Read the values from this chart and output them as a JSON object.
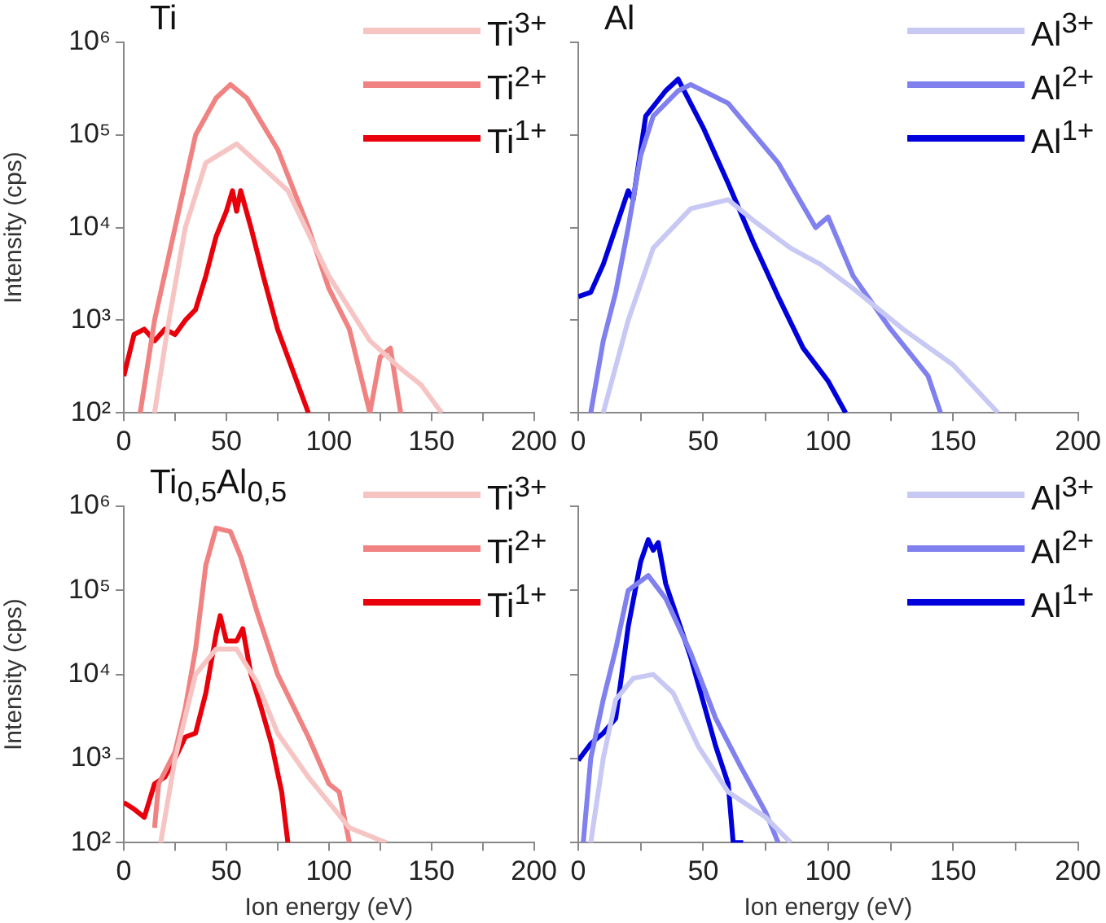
{
  "chart_data": [
    {
      "type": "line",
      "title": "Ti",
      "ylabel": "Intensity (cps)",
      "xlim": [
        0,
        200
      ],
      "xticks": [
        0,
        {
          "value": 25,
          "label": null
        },
        50,
        {
          "value": 75,
          "label": null
        },
        100,
        {
          "value": 125,
          "label": null
        },
        150,
        {
          "value": 175,
          "label": null
        },
        200
      ],
      "ylim": [
        100,
        1000000
      ],
      "yticks": [
        {
          "value": 100,
          "label": "10²"
        },
        {
          "value": 1000,
          "label": "10³"
        },
        {
          "value": 10000,
          "label": "10⁴"
        },
        {
          "value": 100000,
          "label": "10⁵"
        },
        {
          "value": 1000000,
          "label": "10⁶"
        }
      ],
      "log": "y",
      "grid": false,
      "legend": "top right",
      "series": [
        {
          "name": "Ti$^{3+}$",
          "color": "#f7c4c4",
          "x": [
            15,
            22,
            30,
            40,
            55,
            70,
            80,
            100,
            120,
            135,
            145,
            155
          ],
          "values": [
            100,
            1000,
            10000,
            50000,
            80000,
            40000,
            25000,
            3000,
            600,
            300,
            200,
            100
          ]
        },
        {
          "name": "Ti$^{2+}$",
          "color": "#f08282",
          "x": [
            8,
            15,
            25,
            35,
            45,
            52,
            60,
            75,
            90,
            100,
            110,
            120,
            125,
            130,
            135
          ],
          "values": [
            100,
            1000,
            10000,
            100000,
            250000,
            350000,
            250000,
            70000,
            10000,
            2200,
            800,
            100,
            400,
            500,
            100
          ]
        },
        {
          "name": "Ti$^{1+}$",
          "color": "#e8000b",
          "x": [
            0,
            5,
            10,
            15,
            20,
            25,
            30,
            35,
            40,
            45,
            50,
            53,
            55,
            57,
            62,
            68,
            75,
            80,
            85,
            90
          ],
          "values": [
            250,
            700,
            800,
            600,
            800,
            700,
            1000,
            1300,
            3000,
            8000,
            15000,
            25000,
            15000,
            25000,
            10000,
            3000,
            800,
            400,
            200,
            100
          ]
        }
      ]
    },
    {
      "type": "line",
      "title": "Al",
      "xlim": [
        0,
        200
      ],
      "xticks": [
        0,
        {
          "value": 25,
          "label": null
        },
        50,
        {
          "value": 75,
          "label": null
        },
        100,
        {
          "value": 125,
          "label": null
        },
        150,
        {
          "value": 175,
          "label": null
        },
        200
      ],
      "ylim": [
        100,
        1000000
      ],
      "yticks": [
        {
          "value": 100,
          "label": null
        },
        {
          "value": 1000,
          "label": null
        },
        {
          "value": 10000,
          "label": null
        },
        {
          "value": 100000,
          "label": null
        },
        {
          "value": 1000000,
          "label": null
        }
      ],
      "log": "y",
      "grid": false,
      "legend": "top right",
      "tick_labels": "x",
      "series": [
        {
          "name": "Al$^{3+}$",
          "color": "#c8c8f4",
          "x": [
            10,
            20,
            30,
            45,
            60,
            70,
            85,
            97,
            110,
            130,
            150,
            168
          ],
          "values": [
            100,
            1000,
            6000,
            16000,
            20000,
            12000,
            6000,
            4000,
            2200,
            800,
            330,
            100
          ]
        },
        {
          "name": "Al$^{2+}$",
          "color": "#8080ee",
          "x": [
            5,
            10,
            15,
            20,
            25,
            30,
            40,
            45,
            60,
            80,
            95,
            100,
            110,
            125,
            140,
            145
          ],
          "values": [
            100,
            600,
            2000,
            10000,
            60000,
            160000,
            300000,
            350000,
            220000,
            50000,
            10000,
            13000,
            3000,
            800,
            250,
            100
          ]
        },
        {
          "name": "Al$^{1+}$",
          "color": "#0000dd",
          "x": [
            0,
            5,
            10,
            20,
            22,
            27,
            35,
            40,
            50,
            60,
            70,
            80,
            90,
            100,
            107
          ],
          "values": [
            1800,
            2000,
            4000,
            25000,
            20000,
            160000,
            300000,
            400000,
            120000,
            30000,
            7000,
            1800,
            500,
            220,
            100
          ]
        }
      ]
    },
    {
      "type": "line",
      "title": "Ti$_{0,5}$Al$_{0,5}$",
      "xlabel": "Ion energy (eV)",
      "ylabel": "Intensity (cps)",
      "xlim": [
        0,
        200
      ],
      "xticks": [
        0,
        {
          "value": 25,
          "label": null
        },
        50,
        {
          "value": 75,
          "label": null
        },
        100,
        {
          "value": 125,
          "label": null
        },
        150,
        {
          "value": 175,
          "label": null
        },
        200
      ],
      "ylim": [
        100,
        1000000
      ],
      "yticks": [
        {
          "value": 100,
          "label": "10²"
        },
        {
          "value": 1000,
          "label": "10³"
        },
        {
          "value": 10000,
          "label": "10⁴"
        },
        {
          "value": 100000,
          "label": "10⁵"
        },
        {
          "value": 1000000,
          "label": "10⁶"
        }
      ],
      "log": "y",
      "grid": false,
      "legend": "top right",
      "series": [
        {
          "name": "Ti$^{3+}$",
          "color": "#f7c4c4",
          "x": [
            18,
            25,
            35,
            45,
            55,
            65,
            75,
            90,
            100,
            110,
            128
          ],
          "values": [
            100,
            1000,
            10000,
            20000,
            20000,
            8000,
            2000,
            600,
            300,
            150,
            100
          ]
        },
        {
          "name": "Ti$^{2+}$",
          "color": "#f08282",
          "x": [
            15,
            17,
            25,
            30,
            35,
            40,
            45,
            52,
            57,
            65,
            75,
            90,
            100,
            105,
            110
          ],
          "values": [
            150,
            500,
            1200,
            4000,
            20000,
            200000,
            550000,
            500000,
            250000,
            55000,
            10000,
            1800,
            500,
            400,
            100
          ]
        },
        {
          "name": "Ti$^{1+}$",
          "color": "#e8000b",
          "x": [
            0,
            5,
            10,
            15,
            20,
            25,
            30,
            35,
            40,
            45,
            47,
            50,
            55,
            58,
            62,
            67,
            72,
            77,
            80
          ],
          "values": [
            300,
            250,
            200,
            500,
            600,
            1000,
            1800,
            2000,
            6000,
            30000,
            50000,
            25000,
            25000,
            35000,
            10000,
            4000,
            1500,
            400,
            100
          ]
        }
      ]
    },
    {
      "type": "line",
      "xlabel": "Ion energy (eV)",
      "xlim": [
        0,
        200
      ],
      "xticks": [
        0,
        {
          "value": 25,
          "label": null
        },
        50,
        {
          "value": 75,
          "label": null
        },
        100,
        {
          "value": 125,
          "label": null
        },
        150,
        {
          "value": 175,
          "label": null
        },
        200
      ],
      "ylim": [
        100,
        1000000
      ],
      "yticks": [
        {
          "value": 100,
          "label": null
        },
        {
          "value": 1000,
          "label": null
        },
        {
          "value": 10000,
          "label": null
        },
        {
          "value": 100000,
          "label": null
        },
        {
          "value": 1000000,
          "label": null
        }
      ],
      "log": "y",
      "grid": false,
      "legend": "top right",
      "tick_labels": "x",
      "series": [
        {
          "name": "Al$^{3+}$",
          "color": "#c8c8f4",
          "x": [
            5,
            10,
            15,
            22,
            30,
            38,
            48,
            60,
            75,
            85
          ],
          "values": [
            100,
            1000,
            5000,
            9000,
            10000,
            6000,
            1400,
            400,
            200,
            100
          ]
        },
        {
          "name": "Al$^{2+}$",
          "color": "#8080ee",
          "x": [
            2,
            5,
            10,
            15,
            20,
            28,
            35,
            45,
            55,
            65,
            75,
            80
          ],
          "values": [
            100,
            1000,
            5000,
            20000,
            100000,
            150000,
            80000,
            18000,
            3000,
            800,
            230,
            100
          ]
        },
        {
          "name": "Al$^{1+}$",
          "color": "#0000dd",
          "x": [
            0,
            5,
            10,
            15,
            20,
            25,
            28,
            30,
            32,
            35,
            45,
            55,
            60,
            62,
            66
          ],
          "values": [
            950,
            1500,
            2000,
            3000,
            37000,
            220000,
            400000,
            300000,
            370000,
            120000,
            16000,
            1400,
            500,
            100,
            100
          ]
        }
      ]
    }
  ]
}
